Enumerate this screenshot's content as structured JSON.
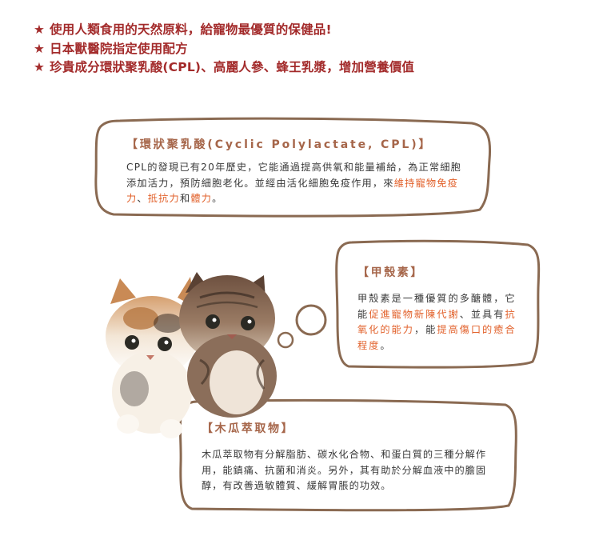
{
  "headlines": [
    {
      "star": "★",
      "text": "使用人類食用的天然原料，給寵物最優質的保健品!"
    },
    {
      "star": "★",
      "text": "日本獸醫院指定使用配方"
    },
    {
      "star": "★",
      "text": "珍貴成分環狀聚乳酸(CPL)、高麗人參、蜂王乳漿，增加營養價值"
    }
  ],
  "cpl": {
    "title": "【環狀聚乳酸(Cyclic Polylactate, CPL)】",
    "body_1": "CPL的發現已有20年歷史，它能通過提高供氧和能量補給，為正常細胞添加活力，預防細胞老化。並經由活化細胞免疫作用，來",
    "hi_1": "維持寵物免疫力",
    "sep_1": "、",
    "hi_2": "抵抗力",
    "sep_2": "和",
    "hi_3": "體力",
    "end": "。"
  },
  "chitosan": {
    "title": "【甲殼素】",
    "body_1": "甲殼素是一種優質的多醣體，它能",
    "hi_1": "促進寵物新陳代謝",
    "sep_1": "、並具有",
    "hi_2": "抗氧化的能力",
    "sep_2": "，能",
    "hi_3": "提高傷口的癒合程度",
    "end": "。"
  },
  "papaya": {
    "title": "【木瓜萃取物】",
    "body": "木瓜萃取物有分解脂肪、碳水化合物、和蛋白質的三種分解作用，能鎮痛、抗菌和消炎。另外，其有助於分解血液中的膽固醇，有改善過敏體質、緩解胃脹的功效。"
  },
  "colors": {
    "headline": "#a32b2b",
    "title": "#a6664a",
    "highlight": "#e2622c",
    "border": "#8a6a52"
  }
}
